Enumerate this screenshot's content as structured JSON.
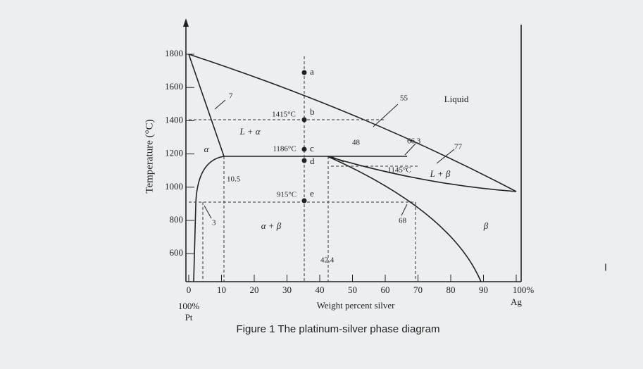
{
  "axis": {
    "y_label": "Temperature (°C)",
    "y_ticks": [
      "1800",
      "1600",
      "1400",
      "1200",
      "1000",
      "800",
      "600"
    ],
    "x_ticks": [
      "0",
      "10",
      "20",
      "30",
      "40",
      "50",
      "60",
      "70",
      "80",
      "90",
      "100%"
    ],
    "x_label": "Weight percent silver",
    "left_end": [
      "100%",
      "Pt"
    ],
    "right_end": "Ag"
  },
  "labels": {
    "liquid": "Liquid",
    "l_alpha": "L + α",
    "alpha": "α",
    "alpha_beta": "α + β",
    "l_beta": "L + β",
    "beta": "β",
    "t1415": "1415°C",
    "t1186": "1186°C",
    "t1145": "1145°C",
    "t915": "915°C",
    "c7": "7",
    "c55": "55",
    "c48": "48",
    "c66": "66.3",
    "c77": "77",
    "c10": "10.5",
    "c3": "3",
    "c68": "68",
    "c42": "42.4",
    "pa": "a",
    "pb": "b",
    "pc": "c",
    "pd": "d",
    "pe": "e"
  },
  "caption": "Figure 1 The platinum-silver phase diagram"
}
